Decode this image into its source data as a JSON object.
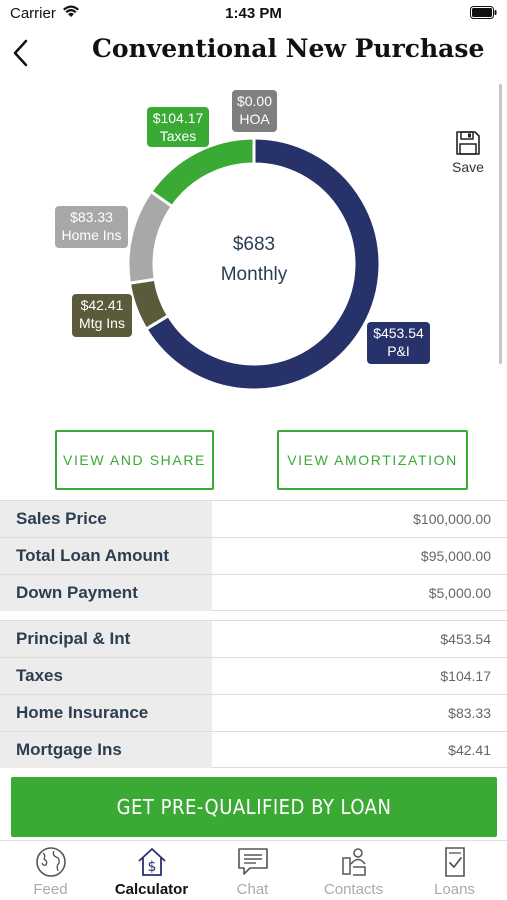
{
  "status_bar": {
    "carrier": "Carrier",
    "time": "1:43 PM"
  },
  "header": {
    "title": "Conventional New Purchase"
  },
  "chart_data": {
    "type": "pie",
    "style": "donut",
    "center_amount": "$683",
    "center_label": "Monthly",
    "slices": [
      {
        "name": "P&I",
        "value": 453.54,
        "label": "$453.54",
        "color": "#27326a"
      },
      {
        "name": "Mtg Ins",
        "value": 42.41,
        "label": "$42.41",
        "color": "#5b5b3b"
      },
      {
        "name": "Home Ins",
        "value": 83.33,
        "label": "$83.33",
        "color": "#a8a8a8"
      },
      {
        "name": "Taxes",
        "value": 104.17,
        "label": "$104.17",
        "color": "#3aaa35"
      },
      {
        "name": "HOA",
        "value": 0.0,
        "label": "$0.00",
        "color": "#7f7f7f"
      }
    ]
  },
  "save": {
    "label": "Save"
  },
  "actions": {
    "share": "VIEW AND SHARE",
    "amortization": "VIEW AMORTIZATION"
  },
  "loan_table": [
    {
      "label": "Sales Price",
      "value": "$100,000.00"
    },
    {
      "label": "Total Loan Amount",
      "value": "$95,000.00"
    },
    {
      "label": "Down Payment",
      "value": "$5,000.00"
    }
  ],
  "payment_table": [
    {
      "label": "Principal & Int",
      "value": "$453.54"
    },
    {
      "label": "Taxes",
      "value": "$104.17"
    },
    {
      "label": "Home Insurance",
      "value": "$83.33"
    },
    {
      "label": "Mortgage Ins",
      "value": "$42.41"
    }
  ],
  "cta": {
    "label": "GET PRE-QUALIFIED BY LOAN"
  },
  "tabs": [
    {
      "label": "Feed",
      "icon": "globe-icon",
      "active": false
    },
    {
      "label": "Calculator",
      "icon": "house-dollar-icon",
      "active": true
    },
    {
      "label": "Chat",
      "icon": "chat-bubble-icon",
      "active": false
    },
    {
      "label": "Contacts",
      "icon": "contacts-icon",
      "active": false
    },
    {
      "label": "Loans",
      "icon": "document-check-icon",
      "active": false
    }
  ],
  "colors": {
    "accent": "#3aaa35",
    "navy": "#27326a"
  }
}
